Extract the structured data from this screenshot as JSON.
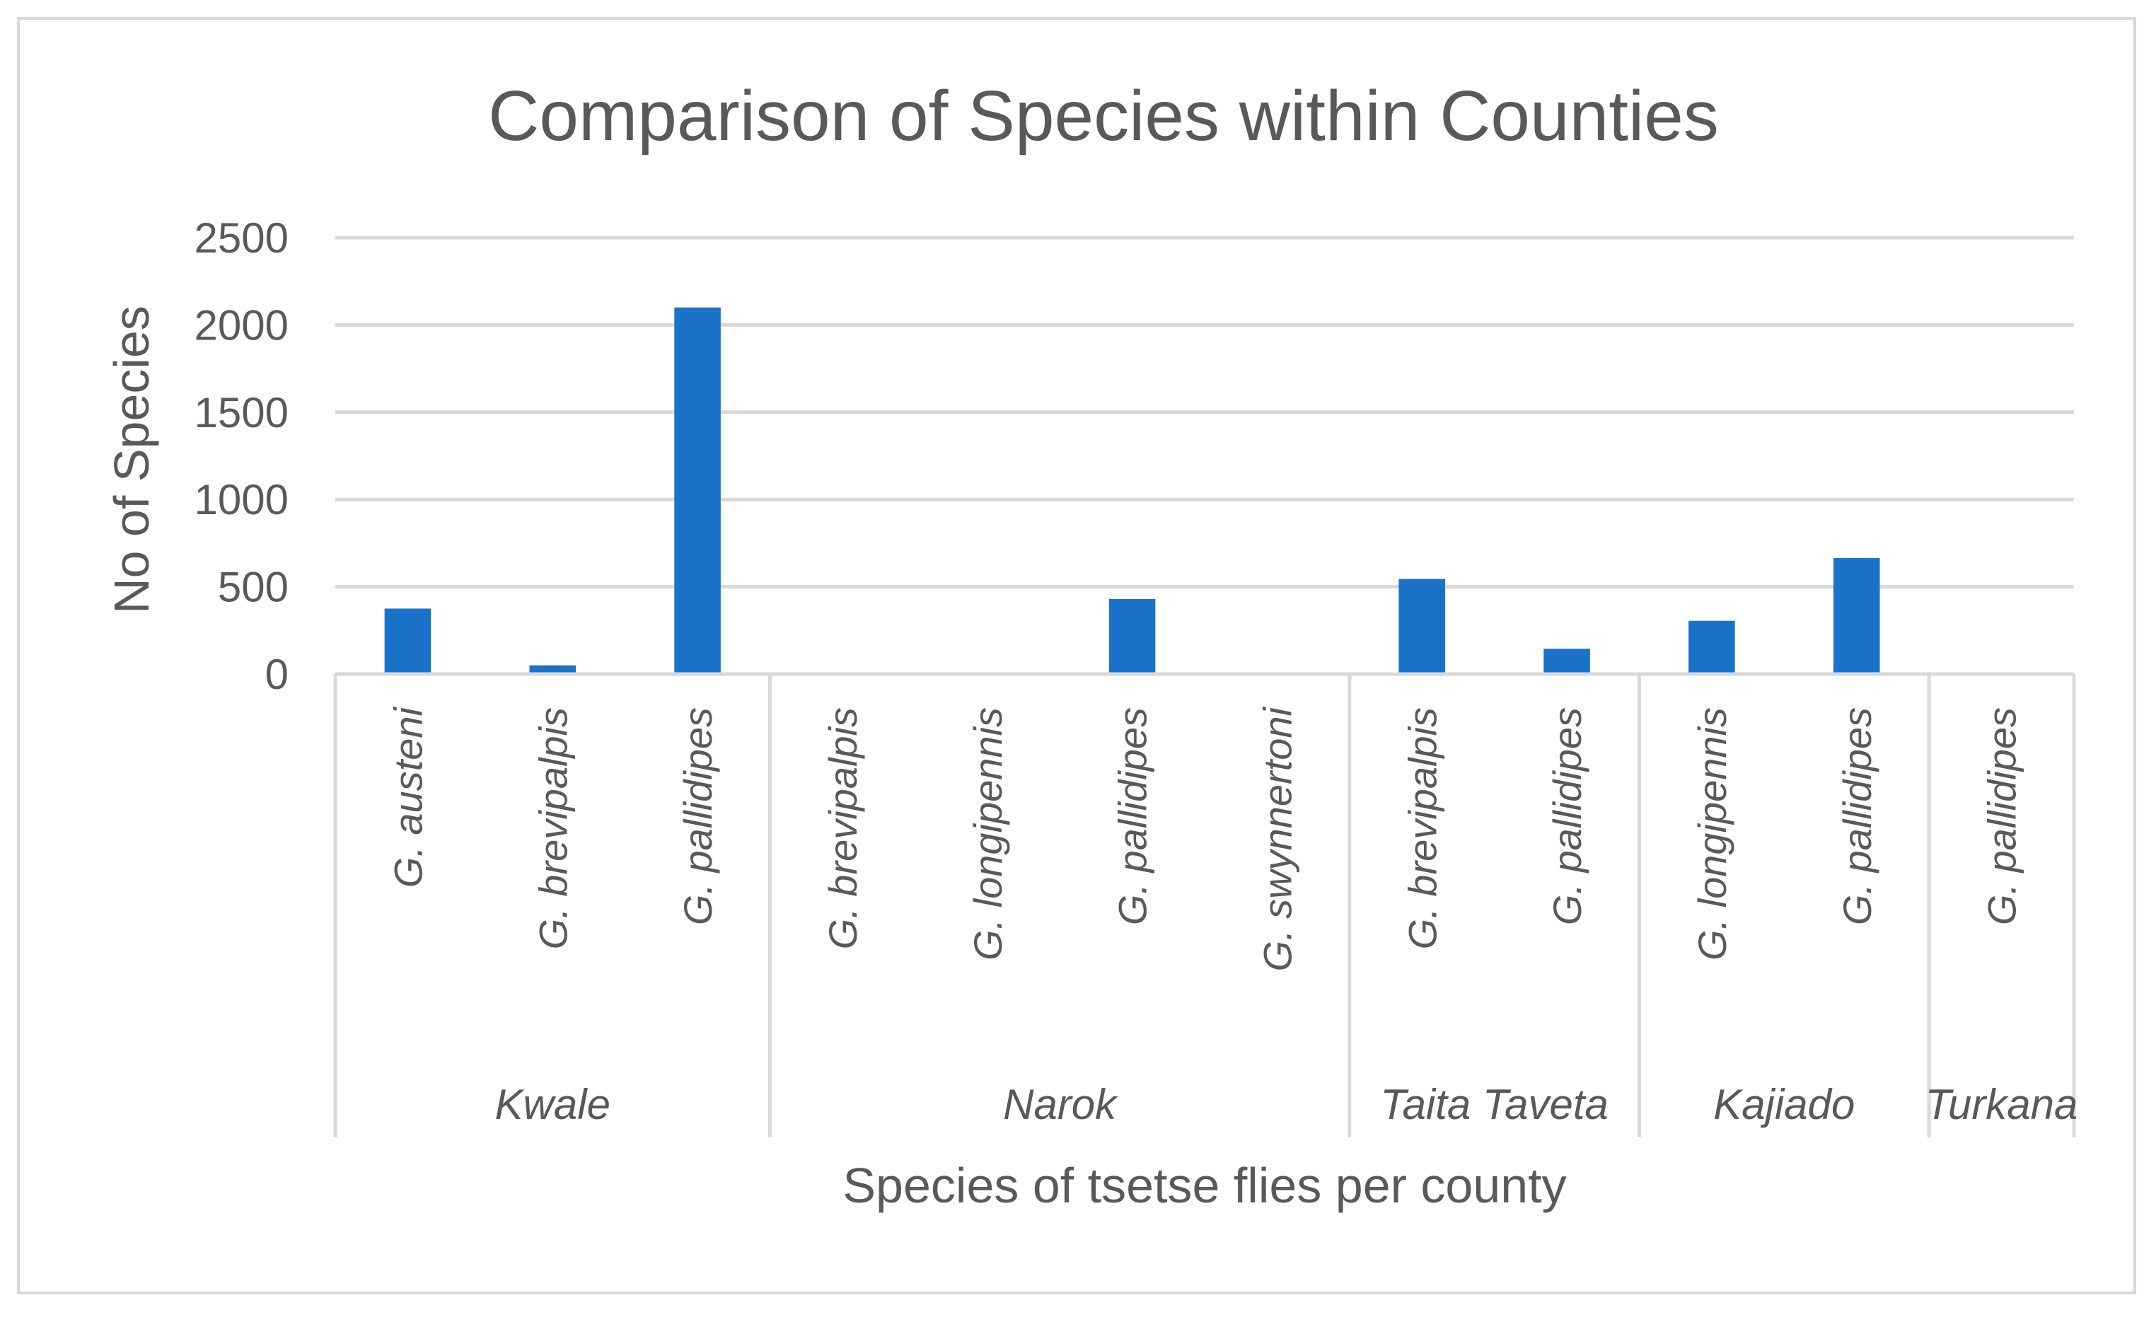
{
  "chart_data": {
    "type": "bar",
    "title": "Comparison of Species within Counties",
    "xlabel": "Species of tsetse flies per county",
    "ylabel": "No of Species",
    "ylim": [
      0,
      2500
    ],
    "yticks": [
      "0",
      "500",
      "1000",
      "1500",
      "2000",
      "2500"
    ],
    "grid": true,
    "bar_color": "#1a73c8",
    "groups": [
      {
        "name": "Kwale",
        "categories": [
          "G. austeni",
          "G. brevipalpis",
          "G. pallidipes"
        ],
        "values": [
          375,
          50,
          2100
        ]
      },
      {
        "name": "Narok",
        "categories": [
          "G. brevipalpis",
          "G. longipennis",
          "G. pallidipes",
          "G. swynnertoni"
        ],
        "values": [
          0,
          0,
          430,
          0
        ]
      },
      {
        "name": "Taita Taveta",
        "categories": [
          "G. brevipalpis",
          "G. pallidipes"
        ],
        "values": [
          545,
          145
        ]
      },
      {
        "name": "Kajiado",
        "categories": [
          "G. longipennis",
          "G. pallidipes"
        ],
        "values": [
          305,
          665
        ]
      },
      {
        "name": "Turkana",
        "categories": [
          "G. pallidipes"
        ],
        "values": [
          10
        ]
      }
    ]
  }
}
